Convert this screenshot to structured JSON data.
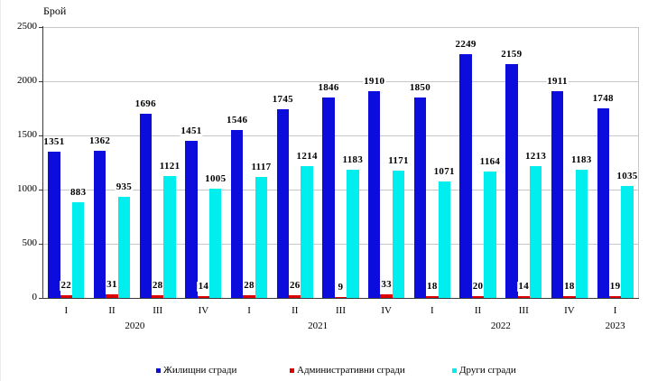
{
  "chart_data": {
    "type": "bar",
    "title": "",
    "ylabel": "Брой",
    "xlabel": "",
    "ylim": [
      0,
      2500
    ],
    "yticks": [
      0,
      500,
      1000,
      1500,
      2000,
      2500
    ],
    "grid": true,
    "legend_position": "bottom",
    "categories": [
      "I",
      "II",
      "III",
      "IV",
      "I",
      "II",
      "III",
      "IV",
      "I",
      "II",
      "III",
      "IV",
      "I"
    ],
    "year_groups": [
      {
        "label": "2020",
        "span": 4
      },
      {
        "label": "2021",
        "span": 4
      },
      {
        "label": "2022",
        "span": 4
      },
      {
        "label": "2023",
        "span": 1
      }
    ],
    "series": [
      {
        "name": "Жилищни сгради",
        "color": "#0c0cdc",
        "values": [
          1351,
          1362,
          1696,
          1451,
          1546,
          1745,
          1846,
          1910,
          1850,
          2249,
          2159,
          1911,
          1748
        ]
      },
      {
        "name": "Административни сгради",
        "color": "#dc0000",
        "values": [
          22,
          31,
          28,
          14,
          28,
          26,
          9,
          33,
          18,
          20,
          14,
          18,
          19
        ]
      },
      {
        "name": "Други сгради",
        "color": "#00eeee",
        "values": [
          883,
          935,
          1121,
          1005,
          1117,
          1214,
          1183,
          1171,
          1071,
          1164,
          1213,
          1183,
          1035
        ]
      }
    ],
    "data_labels": true
  },
  "colors": {
    "background": "#ffffff",
    "axis": "#3b3b3b",
    "gridline": "#c6c6c6",
    "text": "#000000"
  }
}
